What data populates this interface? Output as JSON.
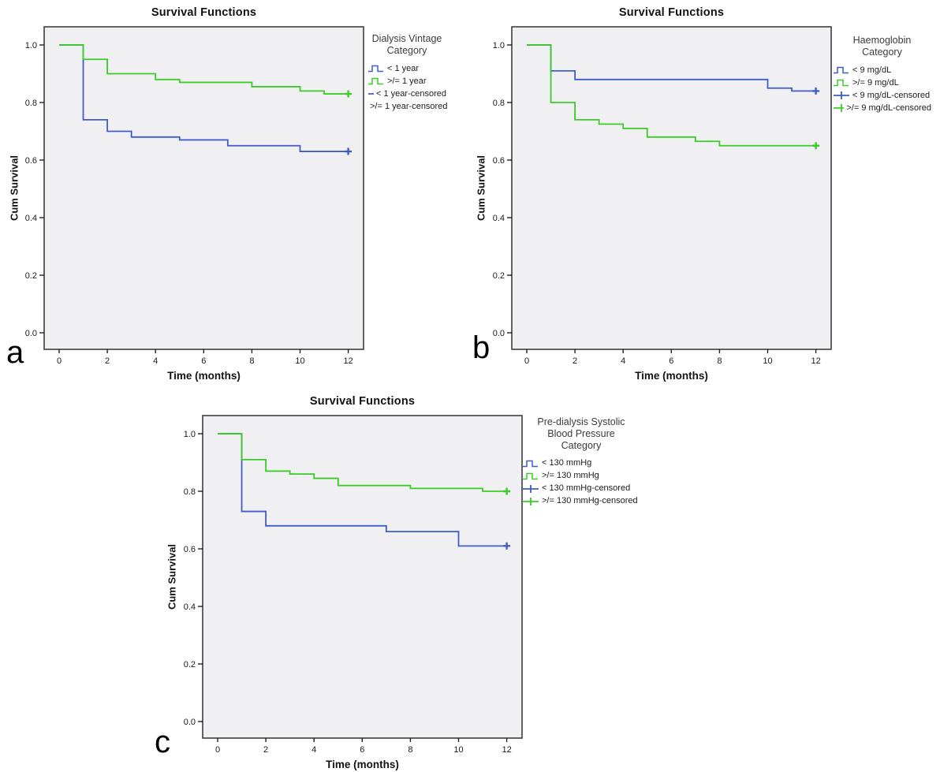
{
  "figure": {
    "description": "Three Kaplan-Meier cumulative survival plots",
    "panels": [
      "a",
      "b",
      "c"
    ]
  },
  "chart_data": [
    {
      "type": "line",
      "subtype": "kaplan-meier-step",
      "panel": "a",
      "title": "Survival Functions",
      "xlabel": "Time (months)",
      "ylabel": "Cum Survival",
      "xlim": [
        -0.6,
        12.6
      ],
      "ylim": [
        -0.06,
        1.06
      ],
      "xticks": [
        0,
        2,
        4,
        6,
        8,
        10,
        12
      ],
      "yticks": [
        0.0,
        0.2,
        0.4,
        0.6,
        0.8,
        1.0
      ],
      "grid": false,
      "legend_position": "right",
      "legend_title_lines": [
        "Dialysis Vintage",
        "Category"
      ],
      "legend_items": [
        {
          "label": "< 1 year",
          "marker": "step",
          "color": "#3f5cc8"
        },
        {
          "label": ">/= 1 year",
          "marker": "step",
          "color": "#3bcb28"
        },
        {
          "label": "< 1 year-censored",
          "marker": "plus",
          "color": "#3f5cc8"
        },
        {
          "label": ">/= 1 year-censored",
          "marker": "plus",
          "color": "#3bcb28"
        }
      ],
      "series": [
        {
          "name": "< 1 year",
          "color": "#3f5cc8",
          "points": [
            [
              0,
              1.0
            ],
            [
              1,
              0.74
            ],
            [
              2,
              0.7
            ],
            [
              3,
              0.68
            ],
            [
              5,
              0.67
            ],
            [
              7,
              0.65
            ],
            [
              10,
              0.63
            ],
            [
              12,
              0.63
            ]
          ],
          "censored": [
            [
              12,
              0.63
            ]
          ]
        },
        {
          "name": ">/= 1 year",
          "color": "#3bcb28",
          "points": [
            [
              0,
              1.0
            ],
            [
              1,
              0.95
            ],
            [
              2,
              0.9
            ],
            [
              4,
              0.88
            ],
            [
              5,
              0.87
            ],
            [
              8,
              0.855
            ],
            [
              10,
              0.84
            ],
            [
              11,
              0.83
            ],
            [
              12,
              0.83
            ]
          ],
          "censored": [
            [
              12,
              0.83
            ]
          ]
        }
      ]
    },
    {
      "type": "line",
      "subtype": "kaplan-meier-step",
      "panel": "b",
      "title": "Survival Functions",
      "xlabel": "Time (months)",
      "ylabel": "Cum Survival",
      "xlim": [
        -0.6,
        12.6
      ],
      "ylim": [
        -0.06,
        1.06
      ],
      "xticks": [
        0,
        2,
        4,
        6,
        8,
        10,
        12
      ],
      "yticks": [
        0.0,
        0.2,
        0.4,
        0.6,
        0.8,
        1.0
      ],
      "grid": false,
      "legend_position": "right",
      "legend_title_lines": [
        "Haemoglobin",
        "Category"
      ],
      "legend_items": [
        {
          "label": "< 9 mg/dL",
          "marker": "step",
          "color": "#3f5cc8"
        },
        {
          "label": ">/= 9 mg/dL",
          "marker": "step",
          "color": "#3bcb28"
        },
        {
          "label": "< 9 mg/dL-censored",
          "marker": "plus",
          "color": "#3f5cc8"
        },
        {
          "label": ">/= 9 mg/dL-censored",
          "marker": "plus",
          "color": "#3bcb28"
        }
      ],
      "series": [
        {
          "name": "< 9 mg/dL",
          "color": "#3f5cc8",
          "points": [
            [
              0,
              1.0
            ],
            [
              1,
              0.91
            ],
            [
              2,
              0.88
            ],
            [
              10,
              0.85
            ],
            [
              11,
              0.84
            ],
            [
              12,
              0.84
            ]
          ],
          "censored": [
            [
              12,
              0.84
            ]
          ]
        },
        {
          "name": ">/= 9 mg/dL",
          "color": "#3bcb28",
          "points": [
            [
              0,
              1.0
            ],
            [
              1,
              0.8
            ],
            [
              2,
              0.74
            ],
            [
              3,
              0.725
            ],
            [
              4,
              0.71
            ],
            [
              5,
              0.68
            ],
            [
              7,
              0.665
            ],
            [
              8,
              0.65
            ],
            [
              12,
              0.65
            ]
          ],
          "censored": [
            [
              12,
              0.65
            ]
          ]
        }
      ]
    },
    {
      "type": "line",
      "subtype": "kaplan-meier-step",
      "panel": "c",
      "title": "Survival Functions",
      "xlabel": "Time (months)",
      "ylabel": "Cum Survival",
      "xlim": [
        -0.6,
        12.6
      ],
      "ylim": [
        -0.06,
        1.06
      ],
      "xticks": [
        0,
        2,
        4,
        6,
        8,
        10,
        12
      ],
      "yticks": [
        0.0,
        0.2,
        0.4,
        0.6,
        0.8,
        1.0
      ],
      "grid": false,
      "legend_position": "right",
      "legend_title_lines": [
        "Pre-dialysis Systolic",
        "Blood Pressure",
        "Category"
      ],
      "legend_items": [
        {
          "label": "< 130 mmHg",
          "marker": "step",
          "color": "#3f5cc8"
        },
        {
          "label": ">/= 130 mmHg",
          "marker": "step",
          "color": "#3bcb28"
        },
        {
          "label": "< 130 mmHg-censored",
          "marker": "plus",
          "color": "#3f5cc8"
        },
        {
          "label": ">/= 130 mmHg-censored",
          "marker": "plus",
          "color": "#3bcb28"
        }
      ],
      "series": [
        {
          "name": "< 130 mmHg",
          "color": "#3f5cc8",
          "points": [
            [
              0,
              1.0
            ],
            [
              1,
              0.73
            ],
            [
              2,
              0.68
            ],
            [
              7,
              0.66
            ],
            [
              10,
              0.61
            ],
            [
              12,
              0.61
            ]
          ],
          "censored": [
            [
              12,
              0.61
            ]
          ]
        },
        {
          "name": ">/= 130 mmHg",
          "color": "#3bcb28",
          "points": [
            [
              0,
              1.0
            ],
            [
              1,
              0.91
            ],
            [
              2,
              0.87
            ],
            [
              3,
              0.86
            ],
            [
              4,
              0.845
            ],
            [
              5,
              0.82
            ],
            [
              8,
              0.81
            ],
            [
              11,
              0.8
            ],
            [
              12,
              0.8
            ]
          ],
          "censored": [
            [
              12,
              0.8
            ]
          ]
        }
      ]
    }
  ],
  "style": {
    "plot_background": "#f0f0f2",
    "frame_color": "#3f3f3f",
    "blue": "#3f5cc8",
    "green": "#3bcb28"
  }
}
